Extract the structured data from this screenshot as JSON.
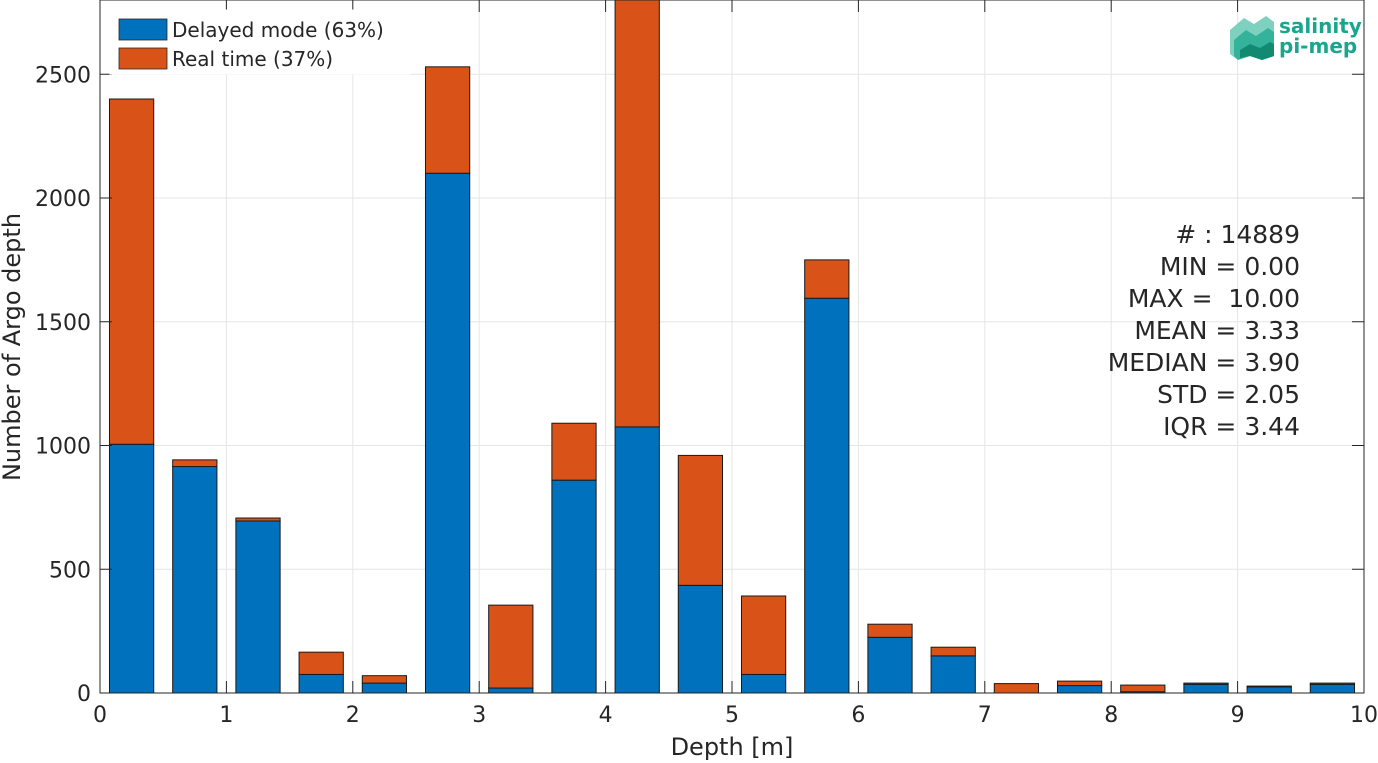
{
  "chart_data": {
    "type": "bar",
    "stacked": true,
    "xlabel": "Depth [m]",
    "ylabel": "Number of Argo depth",
    "xlim": [
      0,
      10
    ],
    "ylim": [
      0,
      2800
    ],
    "xticks": [
      "0",
      "1",
      "2",
      "3",
      "4",
      "5",
      "6",
      "7",
      "8",
      "9",
      "10"
    ],
    "yticks": [
      "0",
      "500",
      "1000",
      "1500",
      "2000",
      "2500"
    ],
    "grid": true,
    "legend_position": "top-left",
    "bin_centers": [
      0.25,
      0.75,
      1.25,
      1.75,
      2.25,
      2.75,
      3.25,
      3.75,
      4.25,
      4.75,
      5.25,
      5.75,
      6.25,
      6.75,
      7.25,
      7.75,
      8.25,
      8.75,
      9.25,
      9.75
    ],
    "series": [
      {
        "name": "Delayed mode (63%)",
        "color": "#0072BD",
        "values": [
          1005,
          915,
          695,
          75,
          40,
          2100,
          20,
          860,
          1075,
          435,
          75,
          1595,
          225,
          150,
          0,
          30,
          5,
          35,
          25,
          35
        ]
      },
      {
        "name": "Real time (37%)",
        "color": "#D95319",
        "values": [
          1395,
          27,
          12,
          90,
          30,
          430,
          335,
          230,
          1725,
          525,
          317,
          155,
          53,
          35,
          38,
          18,
          27,
          5,
          3,
          5
        ]
      }
    ],
    "stats": [
      "# : 14889",
      "MIN = 0.00",
      "MAX =  10.00",
      "MEAN = 3.33",
      "MEDIAN = 3.90",
      "STD = 2.05",
      "IQR = 3.44"
    ]
  },
  "logo": {
    "line1": "salinity",
    "line2": "pi-mep",
    "color": "#1aa58c"
  }
}
